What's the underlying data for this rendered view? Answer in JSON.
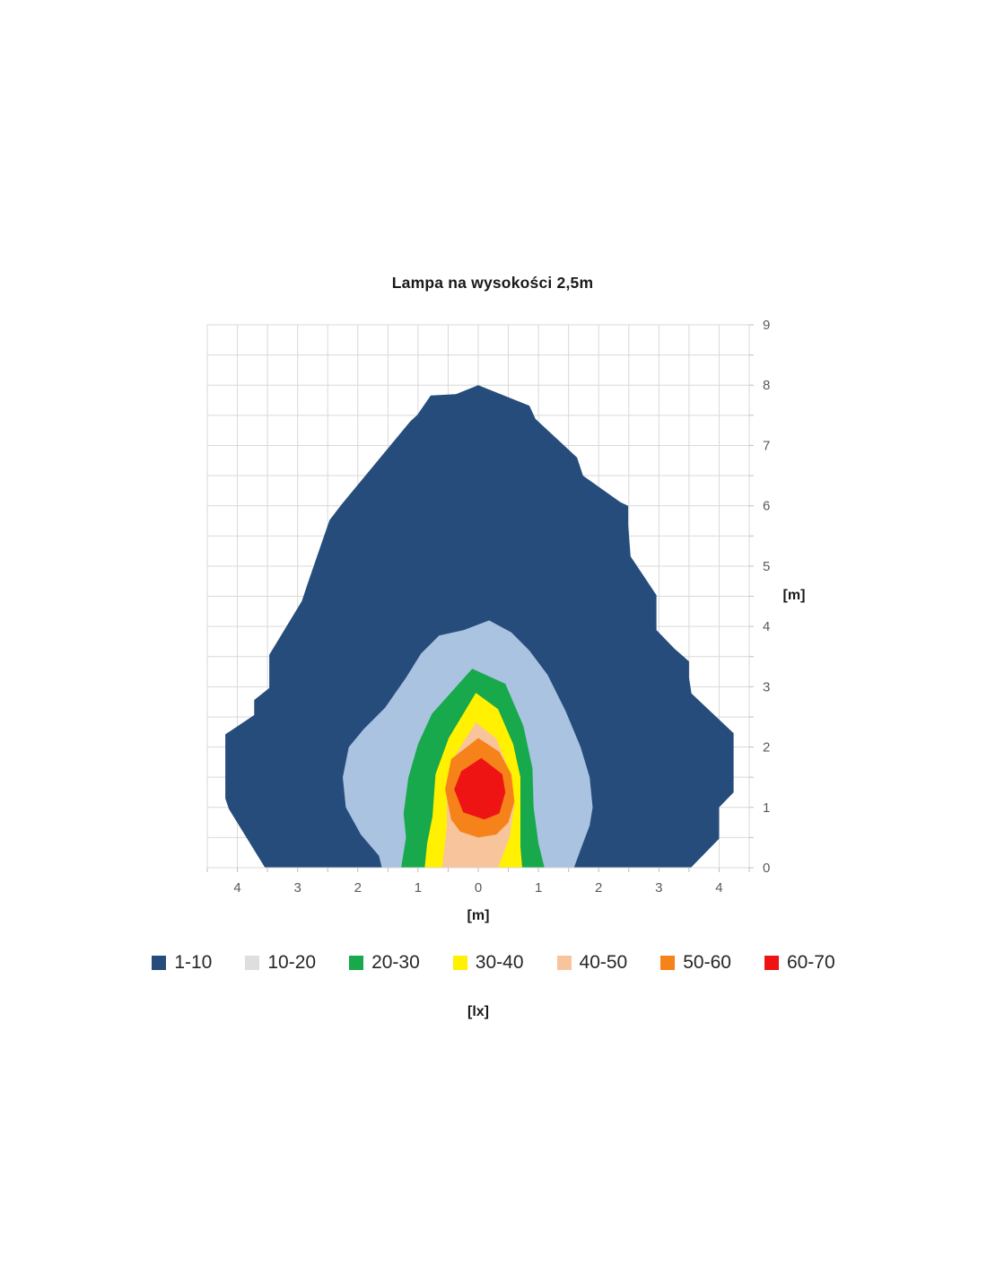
{
  "palette": {
    "grid": "#D9D9D9",
    "tick": "#BFBFBF",
    "tick_label": "#595959",
    "text": "#1A1A1A",
    "legend_text": "#262626"
  },
  "chart_data": {
    "type": "filled-contour",
    "title": "Lampa na wysokości 2,5m",
    "xlabel": "[m]",
    "ylabel": "[m]",
    "legend_title": "[lx]",
    "unit": "lx",
    "xlim": [
      -4.5,
      4.5
    ],
    "ylim": [
      0,
      9
    ],
    "grid": true,
    "grid_step": 0.5,
    "legend_position": "bottom",
    "x_ticks": [
      -4,
      -3,
      -2,
      -1,
      0,
      1,
      2,
      3,
      4
    ],
    "x_tick_labels": [
      "4",
      "3",
      "2",
      "1",
      "0",
      "1",
      "2",
      "3",
      "4"
    ],
    "y_ticks": [
      0,
      1,
      2,
      3,
      4,
      5,
      6,
      7,
      8,
      9
    ],
    "y_tick_labels": [
      "0",
      "1",
      "2",
      "3",
      "4",
      "5",
      "6",
      "7",
      "8",
      "9"
    ],
    "bands": [
      {
        "label": "1-10",
        "range_lx": [
          1,
          10
        ],
        "legend_color": "#254C7B",
        "fill": "#254C7B",
        "polygon": [
          [
            -3.54,
            0
          ],
          [
            -4.14,
            0.97
          ],
          [
            -4.2,
            1.15
          ],
          [
            -4.2,
            2.21
          ],
          [
            -3.72,
            2.53
          ],
          [
            -3.72,
            2.78
          ],
          [
            -3.47,
            2.98
          ],
          [
            -3.47,
            3.53
          ],
          [
            -2.93,
            4.42
          ],
          [
            -2.84,
            4.69
          ],
          [
            -2.47,
            5.76
          ],
          [
            -2.28,
            6.01
          ],
          [
            -1.13,
            7.4
          ],
          [
            -1.01,
            7.51
          ],
          [
            -0.79,
            7.83
          ],
          [
            -0.37,
            7.85
          ],
          [
            0,
            8.0
          ],
          [
            0.5,
            7.8
          ],
          [
            0.85,
            7.66
          ],
          [
            0.95,
            7.44
          ],
          [
            1.64,
            6.8
          ],
          [
            1.74,
            6.5
          ],
          [
            2.36,
            6.06
          ],
          [
            2.49,
            6.0
          ],
          [
            2.49,
            5.68
          ],
          [
            2.53,
            5.16
          ],
          [
            2.96,
            4.52
          ],
          [
            2.96,
            3.94
          ],
          [
            3.26,
            3.63
          ],
          [
            3.5,
            3.42
          ],
          [
            3.5,
            3.15
          ],
          [
            3.54,
            2.89
          ],
          [
            4.24,
            2.23
          ],
          [
            4.24,
            1.25
          ],
          [
            4.0,
            1.0
          ],
          [
            4.0,
            0.48
          ],
          [
            3.53,
            0
          ]
        ]
      },
      {
        "label": "10-20",
        "range_lx": [
          10,
          20
        ],
        "legend_color": "#DEDEDE",
        "fill": "#A9C3E0",
        "polygon": [
          [
            0.18,
            4.1
          ],
          [
            -0.24,
            3.94
          ],
          [
            -0.65,
            3.85
          ],
          [
            -0.95,
            3.55
          ],
          [
            -1.2,
            3.15
          ],
          [
            -1.55,
            2.65
          ],
          [
            -1.9,
            2.3
          ],
          [
            -2.15,
            2.0
          ],
          [
            -2.25,
            1.5
          ],
          [
            -2.2,
            1.0
          ],
          [
            -1.95,
            0.55
          ],
          [
            -1.65,
            0.2
          ],
          [
            -1.6,
            0
          ],
          [
            1.59,
            0
          ],
          [
            1.7,
            0.3
          ],
          [
            1.85,
            0.7
          ],
          [
            1.9,
            1.0
          ],
          [
            1.85,
            1.5
          ],
          [
            1.7,
            2.0
          ],
          [
            1.45,
            2.6
          ],
          [
            1.15,
            3.2
          ],
          [
            0.85,
            3.6
          ],
          [
            0.55,
            3.9
          ]
        ]
      },
      {
        "label": "20-30",
        "range_lx": [
          20,
          30
        ],
        "legend_color": "#17A94B",
        "fill": "#17A94B",
        "polygon": [
          [
            -0.1,
            3.3
          ],
          [
            -0.77,
            2.55
          ],
          [
            -1.0,
            2.05
          ],
          [
            -1.16,
            1.5
          ],
          [
            -1.24,
            0.9
          ],
          [
            -1.2,
            0.5
          ],
          [
            -1.28,
            0
          ],
          [
            1.1,
            0
          ],
          [
            1.0,
            0.4
          ],
          [
            0.92,
            1.0
          ],
          [
            0.9,
            1.65
          ],
          [
            0.75,
            2.35
          ],
          [
            0.45,
            3.05
          ]
        ]
      },
      {
        "label": "30-40",
        "range_lx": [
          30,
          40
        ],
        "legend_color": "#FFF100",
        "fill": "#FFF100",
        "polygon": [
          [
            -0.04,
            2.9
          ],
          [
            -0.49,
            2.15
          ],
          [
            -0.71,
            1.55
          ],
          [
            -0.76,
            0.85
          ],
          [
            -0.85,
            0.4
          ],
          [
            -0.89,
            0
          ],
          [
            0.73,
            0
          ],
          [
            0.7,
            0.35
          ],
          [
            0.7,
            0.9
          ],
          [
            0.7,
            1.5
          ],
          [
            0.58,
            2.05
          ],
          [
            0.33,
            2.63
          ]
        ]
      },
      {
        "label": "40-50",
        "range_lx": [
          40,
          50
        ],
        "legend_color": "#F8C49C",
        "fill": "#F8C49C",
        "polygon": [
          [
            -0.04,
            2.41
          ],
          [
            -0.42,
            1.8
          ],
          [
            -0.52,
            1.25
          ],
          [
            -0.52,
            0.7
          ],
          [
            -0.6,
            0
          ],
          [
            0.33,
            0
          ],
          [
            0.52,
            0.5
          ],
          [
            0.6,
            1.04
          ],
          [
            0.52,
            1.59
          ],
          [
            0.3,
            2.14
          ]
        ]
      },
      {
        "label": "50-60",
        "range_lx": [
          50,
          60
        ],
        "legend_color": "#F6821A",
        "fill": "#F6821A",
        "polygon": [
          [
            0,
            2.15
          ],
          [
            -0.45,
            1.8
          ],
          [
            -0.55,
            1.3
          ],
          [
            -0.45,
            0.8
          ],
          [
            -0.3,
            0.6
          ],
          [
            0,
            0.5
          ],
          [
            0.3,
            0.55
          ],
          [
            0.5,
            0.75
          ],
          [
            0.6,
            1.1
          ],
          [
            0.55,
            1.55
          ],
          [
            0.35,
            1.92
          ]
        ]
      },
      {
        "label": "60-70",
        "range_lx": [
          60,
          70
        ],
        "legend_color": "#EE1414",
        "fill": "#EE1414",
        "polygon": [
          [
            0.05,
            1.82
          ],
          [
            -0.28,
            1.6
          ],
          [
            -0.4,
            1.3
          ],
          [
            -0.25,
            0.92
          ],
          [
            0.1,
            0.8
          ],
          [
            0.35,
            0.9
          ],
          [
            0.45,
            1.25
          ],
          [
            0.4,
            1.55
          ]
        ]
      }
    ]
  }
}
